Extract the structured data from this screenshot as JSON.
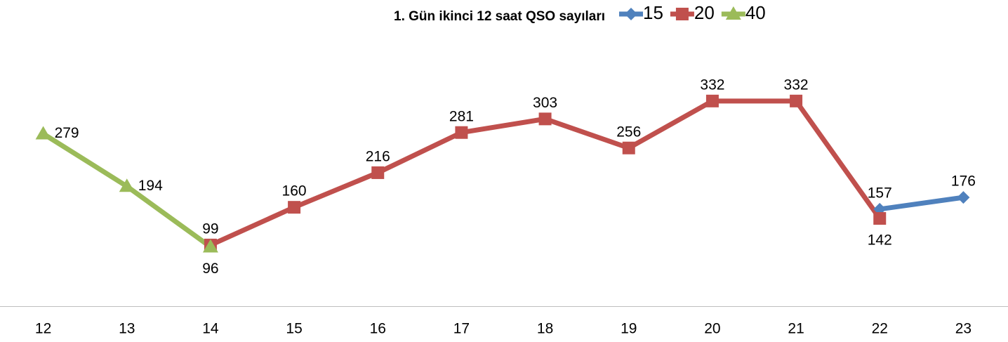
{
  "chart_data": {
    "type": "line",
    "title": "1. Gün ikinci 12 saat QSO sayıları",
    "categories": [
      "12",
      "13",
      "14",
      "15",
      "16",
      "17",
      "18",
      "19",
      "20",
      "21",
      "22",
      "23"
    ],
    "series": [
      {
        "name": "15",
        "color": "#4f81bd",
        "values": [
          null,
          null,
          null,
          null,
          null,
          null,
          null,
          null,
          null,
          null,
          157,
          176
        ]
      },
      {
        "name": "20",
        "color": "#c0504d",
        "values": [
          null,
          null,
          99,
          160,
          216,
          281,
          303,
          256,
          332,
          332,
          142,
          null
        ]
      },
      {
        "name": "40",
        "color": "#9bbb59",
        "values": [
          279,
          194,
          96,
          null,
          null,
          null,
          null,
          null,
          null,
          null,
          null,
          null
        ]
      }
    ],
    "ylim": [
      0,
      400
    ],
    "legend": "top"
  }
}
